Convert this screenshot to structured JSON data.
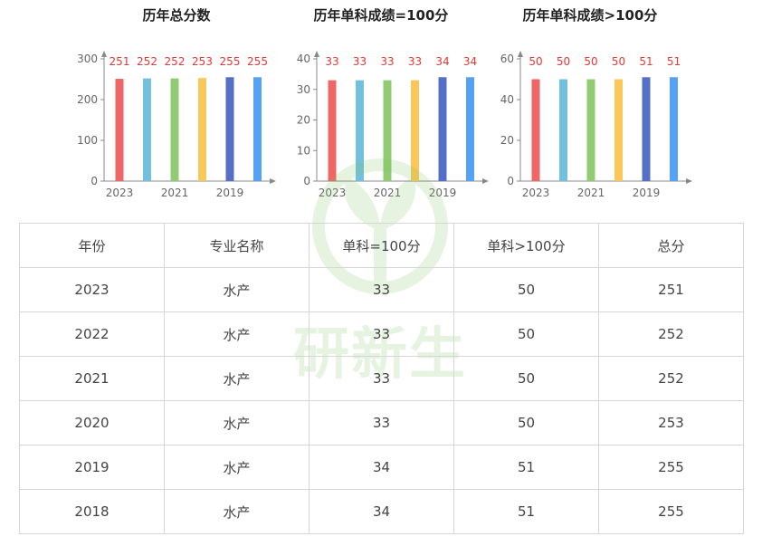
{
  "chart_data": [
    {
      "type": "bar",
      "title": "历年总分数",
      "categories": [
        "2023",
        "2022",
        "2021",
        "2020",
        "2019",
        "2018"
      ],
      "x_tick_labels": [
        "2023",
        "2021",
        "2019"
      ],
      "values": [
        251,
        252,
        252,
        253,
        255,
        255
      ],
      "ylim": [
        0,
        300
      ],
      "yticks": [
        0,
        100,
        200,
        300
      ],
      "colors": [
        "#ee6666",
        "#73c0de",
        "#91cc75",
        "#fac858",
        "#5470c6",
        "#55a2f5"
      ],
      "data_label_color": "#e53935",
      "grid": false
    },
    {
      "type": "bar",
      "title": "历年单科成绩=100分",
      "categories": [
        "2023",
        "2022",
        "2021",
        "2020",
        "2019",
        "2018"
      ],
      "x_tick_labels": [
        "2023",
        "2021",
        "2019"
      ],
      "values": [
        33,
        33,
        33,
        33,
        34,
        34
      ],
      "ylim": [
        0,
        40
      ],
      "yticks": [
        0,
        10,
        20,
        30,
        40
      ],
      "colors": [
        "#ee6666",
        "#73c0de",
        "#91cc75",
        "#fac858",
        "#5470c6",
        "#55a2f5"
      ],
      "data_label_color": "#e53935",
      "grid": false
    },
    {
      "type": "bar",
      "title": "历年单科成绩>100分",
      "categories": [
        "2023",
        "2022",
        "2021",
        "2020",
        "2019",
        "2018"
      ],
      "x_tick_labels": [
        "2023",
        "2021",
        "2019"
      ],
      "values": [
        50,
        50,
        50,
        50,
        51,
        51
      ],
      "ylim": [
        0,
        60
      ],
      "yticks": [
        0,
        20,
        40,
        60
      ],
      "colors": [
        "#ee6666",
        "#73c0de",
        "#91cc75",
        "#fac858",
        "#5470c6",
        "#55a2f5"
      ],
      "data_label_color": "#e53935",
      "grid": false
    }
  ],
  "table": {
    "headers": [
      "年份",
      "专业名称",
      "单科=100分",
      "单科>100分",
      "总分"
    ],
    "rows": [
      [
        "2023",
        "水产",
        "33",
        "50",
        "251"
      ],
      [
        "2022",
        "水产",
        "33",
        "50",
        "252"
      ],
      [
        "2021",
        "水产",
        "33",
        "50",
        "252"
      ],
      [
        "2020",
        "水产",
        "33",
        "50",
        "253"
      ],
      [
        "2019",
        "水产",
        "34",
        "51",
        "255"
      ],
      [
        "2018",
        "水产",
        "34",
        "51",
        "255"
      ]
    ]
  },
  "watermark": {
    "text": "研新生",
    "color": "#7cc15a"
  }
}
